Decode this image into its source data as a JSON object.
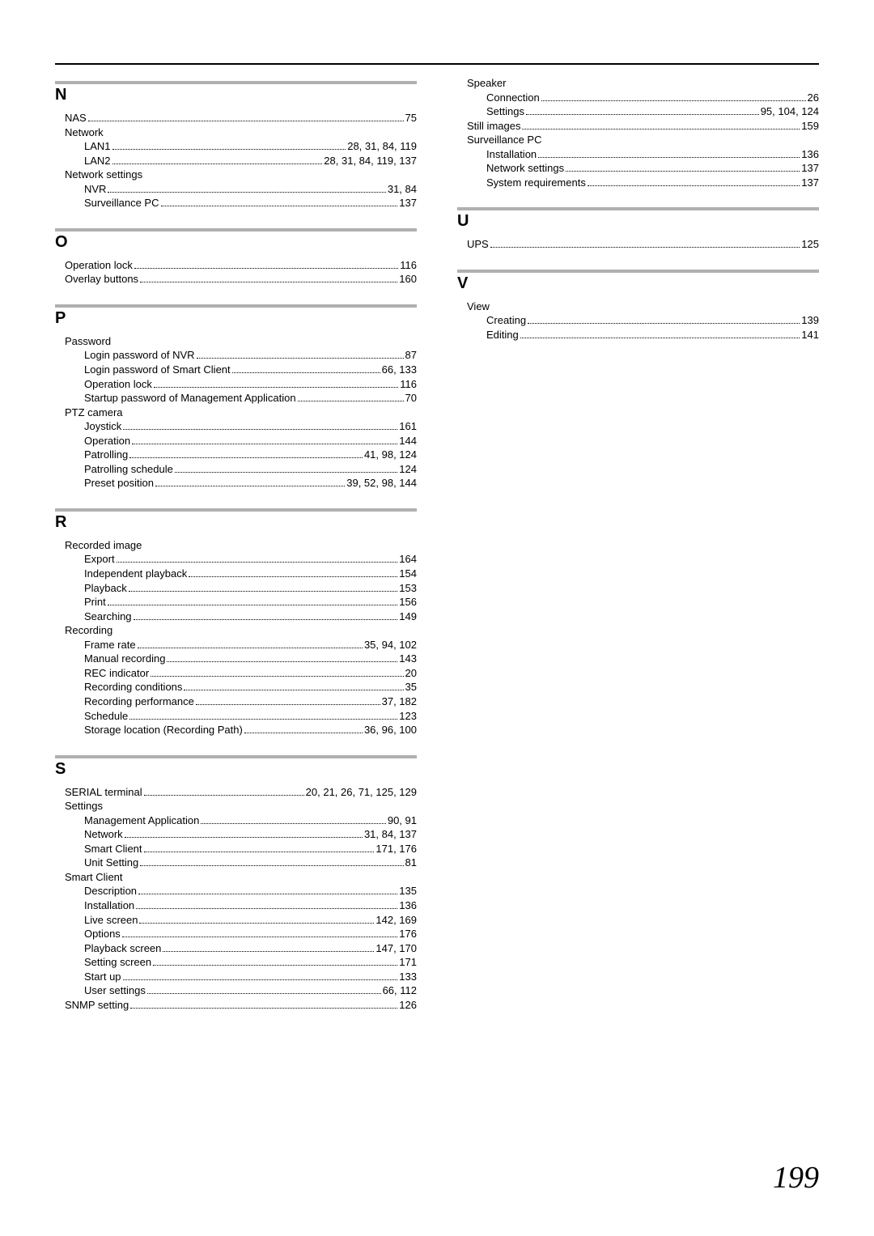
{
  "page_number": "199",
  "colors": {
    "text": "#000000",
    "rule": "#b0b0b0",
    "background": "#ffffff"
  },
  "typography": {
    "body_font": "Arial",
    "body_size_pt": 10,
    "letter_heading_size_pt": 15,
    "page_number_font": "Georgia",
    "page_number_size_pt": 28
  },
  "left_column": [
    {
      "letter": "N",
      "entries": [
        {
          "level": 0,
          "label": "NAS",
          "pages": "75"
        },
        {
          "level": 0,
          "label": "Network",
          "pages": ""
        },
        {
          "level": 1,
          "label": "LAN1",
          "pages": "28, 31, 84, 119"
        },
        {
          "level": 1,
          "label": "LAN2",
          "pages": "28, 31, 84, 119, 137"
        },
        {
          "level": 0,
          "label": "Network settings",
          "pages": ""
        },
        {
          "level": 1,
          "label": "NVR",
          "pages": "31, 84"
        },
        {
          "level": 1,
          "label": "Surveillance PC",
          "pages": "137"
        }
      ]
    },
    {
      "letter": "O",
      "entries": [
        {
          "level": 0,
          "label": "Operation lock",
          "pages": "116"
        },
        {
          "level": 0,
          "label": "Overlay buttons",
          "pages": "160"
        }
      ]
    },
    {
      "letter": "P",
      "entries": [
        {
          "level": 0,
          "label": "Password",
          "pages": ""
        },
        {
          "level": 1,
          "label": "Login password of NVR",
          "pages": "87"
        },
        {
          "level": 1,
          "label": "Login password of Smart Client",
          "pages": "66, 133"
        },
        {
          "level": 1,
          "label": "Operation lock",
          "pages": "116"
        },
        {
          "level": 1,
          "label": "Startup password of Management Application",
          "pages": "70"
        },
        {
          "level": 0,
          "label": "PTZ camera",
          "pages": ""
        },
        {
          "level": 1,
          "label": "Joystick",
          "pages": "161"
        },
        {
          "level": 1,
          "label": "Operation",
          "pages": "144"
        },
        {
          "level": 1,
          "label": "Patrolling",
          "pages": "41, 98, 124"
        },
        {
          "level": 1,
          "label": "Patrolling schedule",
          "pages": "124"
        },
        {
          "level": 1,
          "label": "Preset position",
          "pages": "39, 52, 98, 144"
        }
      ]
    },
    {
      "letter": "R",
      "entries": [
        {
          "level": 0,
          "label": "Recorded image",
          "pages": ""
        },
        {
          "level": 1,
          "label": "Export",
          "pages": "164"
        },
        {
          "level": 1,
          "label": "Independent playback",
          "pages": "154"
        },
        {
          "level": 1,
          "label": "Playback",
          "pages": "153"
        },
        {
          "level": 1,
          "label": "Print",
          "pages": "156"
        },
        {
          "level": 1,
          "label": "Searching",
          "pages": "149"
        },
        {
          "level": 0,
          "label": "Recording",
          "pages": ""
        },
        {
          "level": 1,
          "label": "Frame rate",
          "pages": "35, 94, 102"
        },
        {
          "level": 1,
          "label": "Manual recording",
          "pages": "143"
        },
        {
          "level": 1,
          "label": "REC indicator",
          "pages": "20"
        },
        {
          "level": 1,
          "label": "Recording conditions",
          "pages": "35"
        },
        {
          "level": 1,
          "label": "Recording performance",
          "pages": "37, 182"
        },
        {
          "level": 1,
          "label": "Schedule",
          "pages": "123"
        },
        {
          "level": 1,
          "label": "Storage location (Recording Path)",
          "pages": "36, 96, 100"
        }
      ]
    },
    {
      "letter": "S",
      "entries": [
        {
          "level": 0,
          "label": "SERIAL terminal",
          "pages": "20, 21, 26, 71, 125, 129"
        },
        {
          "level": 0,
          "label": "Settings",
          "pages": ""
        },
        {
          "level": 1,
          "label": "Management Application",
          "pages": "90, 91"
        },
        {
          "level": 1,
          "label": "Network",
          "pages": "31, 84, 137"
        },
        {
          "level": 1,
          "label": "Smart Client",
          "pages": "171, 176"
        },
        {
          "level": 1,
          "label": "Unit Setting",
          "pages": "81"
        },
        {
          "level": 0,
          "label": "Smart Client",
          "pages": ""
        },
        {
          "level": 1,
          "label": "Description",
          "pages": "135"
        },
        {
          "level": 1,
          "label": "Installation",
          "pages": "136"
        },
        {
          "level": 1,
          "label": "Live screen",
          "pages": "142, 169"
        },
        {
          "level": 1,
          "label": "Options",
          "pages": "176"
        },
        {
          "level": 1,
          "label": "Playback screen",
          "pages": "147, 170"
        },
        {
          "level": 1,
          "label": "Setting screen",
          "pages": "171"
        },
        {
          "level": 1,
          "label": "Start up",
          "pages": "133"
        },
        {
          "level": 1,
          "label": "User settings",
          "pages": "66, 112"
        },
        {
          "level": 0,
          "label": "SNMP setting",
          "pages": "126"
        }
      ]
    }
  ],
  "right_column_preface": [
    {
      "level": 0,
      "label": "Speaker",
      "pages": ""
    },
    {
      "level": 1,
      "label": "Connection",
      "pages": "26"
    },
    {
      "level": 1,
      "label": "Settings",
      "pages": "95, 104, 124"
    },
    {
      "level": 0,
      "label": "Still images",
      "pages": "159"
    },
    {
      "level": 0,
      "label": "Surveillance PC",
      "pages": ""
    },
    {
      "level": 1,
      "label": "Installation",
      "pages": "136"
    },
    {
      "level": 1,
      "label": "Network settings",
      "pages": "137"
    },
    {
      "level": 1,
      "label": "System requirements",
      "pages": "137"
    }
  ],
  "right_column": [
    {
      "letter": "U",
      "entries": [
        {
          "level": 0,
          "label": "UPS",
          "pages": "125"
        }
      ]
    },
    {
      "letter": "V",
      "entries": [
        {
          "level": 0,
          "label": "View",
          "pages": ""
        },
        {
          "level": 1,
          "label": "Creating",
          "pages": "139"
        },
        {
          "level": 1,
          "label": "Editing",
          "pages": "141"
        }
      ]
    }
  ]
}
